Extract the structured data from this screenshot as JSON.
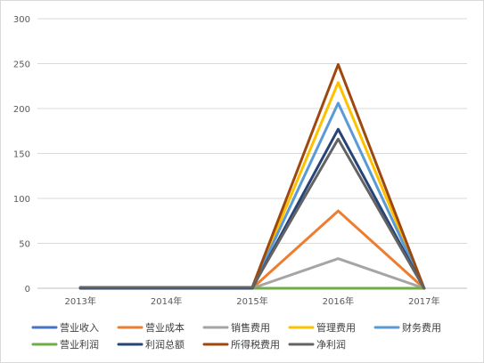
{
  "chart_data": {
    "type": "line",
    "categories": [
      "2013年",
      "2014年",
      "2015年",
      "2016年",
      "2017年"
    ],
    "ylim": [
      0,
      300
    ],
    "yticks": [
      0,
      50,
      100,
      150,
      200,
      250,
      300
    ],
    "grid": true,
    "legend_position": "bottom",
    "series": [
      {
        "name": "营业收入",
        "color": "#4472C4",
        "values": [
          0,
          0,
          0,
          0,
          0
        ]
      },
      {
        "name": "营业成本",
        "color": "#ED7D31",
        "values": [
          0,
          0,
          0,
          86,
          0
        ]
      },
      {
        "name": "销售费用",
        "color": "#A5A5A5",
        "values": [
          0,
          0,
          0,
          33,
          0
        ]
      },
      {
        "name": "管理费用",
        "color": "#FFC000",
        "values": [
          0,
          0,
          0,
          229,
          0
        ]
      },
      {
        "name": "财务费用",
        "color": "#5B9BD5",
        "values": [
          0,
          0,
          0,
          206,
          0
        ]
      },
      {
        "name": "营业利润",
        "color": "#70AD47",
        "values": [
          0,
          0,
          0,
          0,
          0
        ]
      },
      {
        "name": "利润总额",
        "color": "#264478",
        "values": [
          0,
          0,
          0,
          177,
          0
        ]
      },
      {
        "name": "所得税费用",
        "color": "#9E480E",
        "values": [
          1,
          1,
          1,
          249,
          0
        ]
      },
      {
        "name": "净利润",
        "color": "#636363",
        "values": [
          1,
          1,
          1,
          166,
          0
        ]
      }
    ]
  }
}
